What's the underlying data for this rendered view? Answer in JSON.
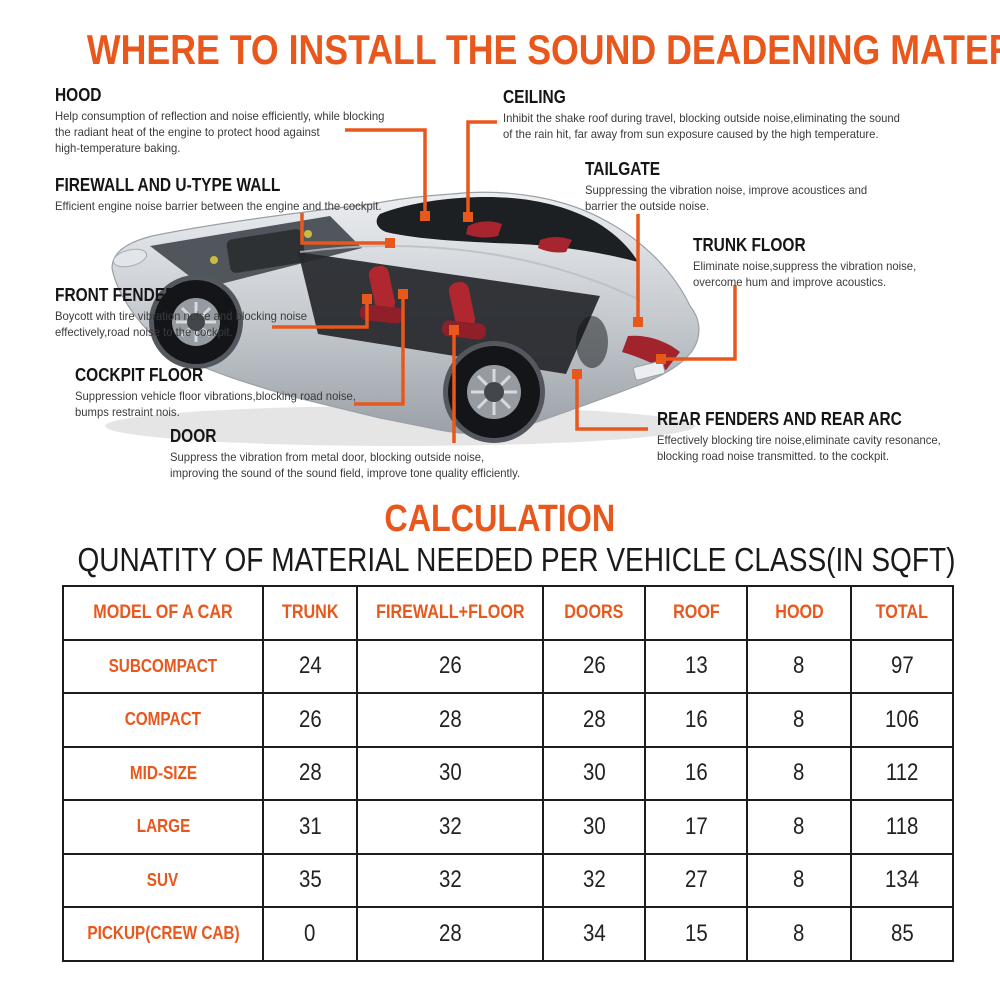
{
  "title": "WHERE TO INSTALL THE SOUND DEADENING MATERIAL",
  "colors": {
    "accent_orange": "#E8571C",
    "heading_text": "#151515",
    "body_text": "#3b3b3b",
    "table_border": "#1c1c1c"
  },
  "callouts": [
    {
      "id": "hood",
      "heading": "HOOD",
      "desc": "Help consumption of reflection and noise efficiently, while blocking\nthe radiant heat of the engine to protect hood against\nhigh-temperature baking."
    },
    {
      "id": "ceiling",
      "heading": "CEILING",
      "desc": "Inhibit the shake roof during travel, blocking outside noise,eliminating the sound\nof the rain hit, far away from sun exposure caused by the high temperature."
    },
    {
      "id": "firewall",
      "heading": "FIREWALL AND U-TYPE WALL",
      "desc": "Efficient engine noise barrier between the engine and the cockpit."
    },
    {
      "id": "tailgate",
      "heading": "TAILGATE",
      "desc": "Suppressing the vibration noise, improve acoustices and\nbarrier the outside noise."
    },
    {
      "id": "trunk-floor",
      "heading": "TRUNK FLOOR",
      "desc": "Eliminate noise,suppress the vibration noise,\novercome hum and improve acoustics."
    },
    {
      "id": "front-fender",
      "heading": "FRONT FENDER",
      "desc": "Boycott with tire vibration noise and blocking noise\neffectively,road noise to the cockpit."
    },
    {
      "id": "cockpit-floor",
      "heading": "COCKPIT FLOOR",
      "desc": "Suppression vehicle floor vibrations,blocking road noise,\nbumps restraint nois."
    },
    {
      "id": "door",
      "heading": "DOOR",
      "desc": "Suppress the vibration from metal door, blocking outside noise,\nimproving the sound of the sound field, improve tone quality efficiently."
    },
    {
      "id": "rear-fenders",
      "heading": "REAR FENDERS AND REAR ARC",
      "desc": "Effectively blocking tire noise,eliminate cavity resonance,\nblocking road noise transmitted. to the cockpit."
    }
  ],
  "calculation": {
    "title": "CALCULATION",
    "subtitle": "QUNATITY OF MATERIAL NEEDED PER VEHICLE CLASS(IN SQFT)"
  },
  "chart_data": {
    "type": "table",
    "title": "QUNATITY OF MATERIAL NEEDED PER VEHICLE CLASS(IN SQFT)",
    "headers": [
      "MODEL OF A CAR",
      "TRUNK",
      "FIREWALL+FLOOR",
      "DOORS",
      "ROOF",
      "HOOD",
      "TOTAL"
    ],
    "rows": [
      [
        "SUBCOMPACT",
        24,
        26,
        26,
        13,
        8,
        97
      ],
      [
        "COMPACT",
        26,
        28,
        28,
        16,
        8,
        106
      ],
      [
        "MID-SIZE",
        28,
        30,
        30,
        16,
        8,
        112
      ],
      [
        "LARGE",
        31,
        32,
        30,
        17,
        8,
        118
      ],
      [
        "SUV",
        35,
        32,
        32,
        27,
        8,
        134
      ],
      [
        "PICKUP(CREW CAB)",
        0,
        28,
        34,
        15,
        8,
        85
      ]
    ]
  }
}
